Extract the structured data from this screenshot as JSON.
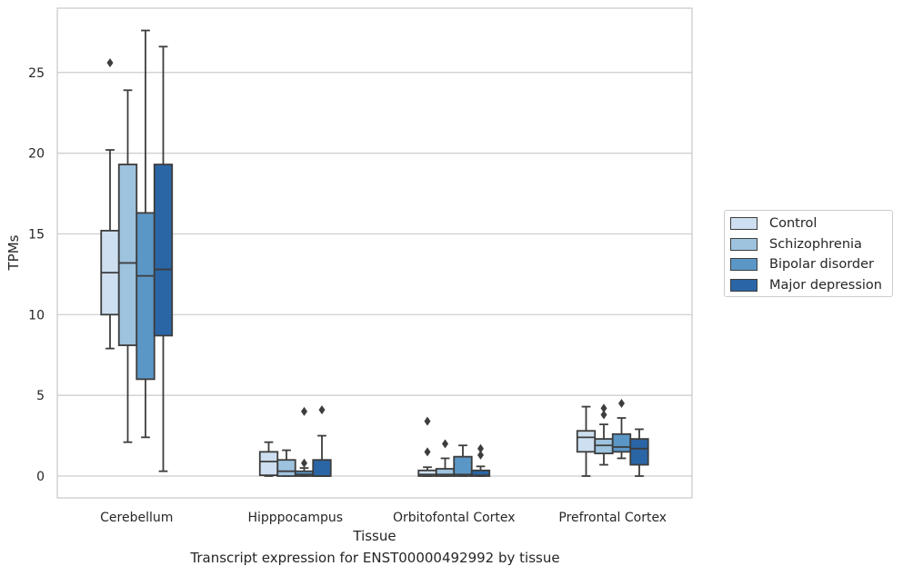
{
  "chart_data": {
    "type": "box",
    "title": "Transcript expression for ENST00000492992 by tissue",
    "xlabel": "Tissue",
    "ylabel": "TPMs",
    "ylim": [
      -1.3,
      28.8
    ],
    "yticks": [
      0,
      5,
      10,
      15,
      20,
      25
    ],
    "grid": "horizontal",
    "legend_position": "right",
    "categories": [
      "Cerebellum",
      "Hipppocampus",
      "Orbitofontal Cortex",
      "Prefrontal Cortex"
    ],
    "series": [
      {
        "name": "Control",
        "color": "#cddff0",
        "boxes": [
          {
            "whislo": 7.9,
            "q1": 10.0,
            "med": 12.6,
            "q3": 15.2,
            "whishi": 20.2,
            "fliers": [
              25.6
            ]
          },
          {
            "whislo": 0.0,
            "q1": 0.05,
            "med": 0.9,
            "q3": 1.5,
            "whishi": 2.1,
            "fliers": []
          },
          {
            "whislo": 0.0,
            "q1": 0.0,
            "med": 0.1,
            "q3": 0.35,
            "whishi": 0.55,
            "fliers": [
              3.4,
              1.5
            ]
          },
          {
            "whislo": 0.0,
            "q1": 1.5,
            "med": 2.4,
            "q3": 2.8,
            "whishi": 4.3,
            "fliers": []
          }
        ]
      },
      {
        "name": "Schizophrenia",
        "color": "#9dc3df",
        "boxes": [
          {
            "whislo": 2.1,
            "q1": 8.1,
            "med": 13.2,
            "q3": 19.3,
            "whishi": 23.9,
            "fliers": []
          },
          {
            "whislo": 0.0,
            "q1": 0.0,
            "med": 0.3,
            "q3": 1.0,
            "whishi": 1.6,
            "fliers": []
          },
          {
            "whislo": 0.0,
            "q1": 0.0,
            "med": 0.1,
            "q3": 0.45,
            "whishi": 1.1,
            "fliers": [
              2.0
            ]
          },
          {
            "whislo": 0.7,
            "q1": 1.4,
            "med": 1.9,
            "q3": 2.3,
            "whishi": 3.2,
            "fliers": [
              4.2,
              3.8
            ]
          }
        ]
      },
      {
        "name": "Bipolar disorder",
        "color": "#5b97c6",
        "boxes": [
          {
            "whislo": 2.4,
            "q1": 6.0,
            "med": 12.4,
            "q3": 16.3,
            "whishi": 27.6,
            "fliers": []
          },
          {
            "whislo": 0.0,
            "q1": 0.0,
            "med": 0.1,
            "q3": 0.3,
            "whishi": 0.5,
            "fliers": [
              4.0,
              0.8
            ]
          },
          {
            "whislo": 0.0,
            "q1": 0.0,
            "med": 0.1,
            "q3": 1.2,
            "whishi": 1.9,
            "fliers": []
          },
          {
            "whislo": 1.1,
            "q1": 1.5,
            "med": 1.8,
            "q3": 2.6,
            "whishi": 3.6,
            "fliers": [
              4.5
            ]
          }
        ]
      },
      {
        "name": "Major depression",
        "color": "#2a66a6",
        "boxes": [
          {
            "whislo": 0.3,
            "q1": 8.7,
            "med": 12.8,
            "q3": 19.3,
            "whishi": 26.6,
            "fliers": []
          },
          {
            "whislo": 0.0,
            "q1": 0.0,
            "med": 0.0,
            "q3": 1.0,
            "whishi": 2.5,
            "fliers": [
              4.1
            ]
          },
          {
            "whislo": 0.0,
            "q1": 0.0,
            "med": 0.05,
            "q3": 0.35,
            "whishi": 0.6,
            "fliers": [
              1.7,
              1.3
            ]
          },
          {
            "whislo": 0.0,
            "q1": 0.7,
            "med": 1.7,
            "q3": 2.3,
            "whishi": 2.9,
            "fliers": []
          }
        ]
      }
    ]
  }
}
